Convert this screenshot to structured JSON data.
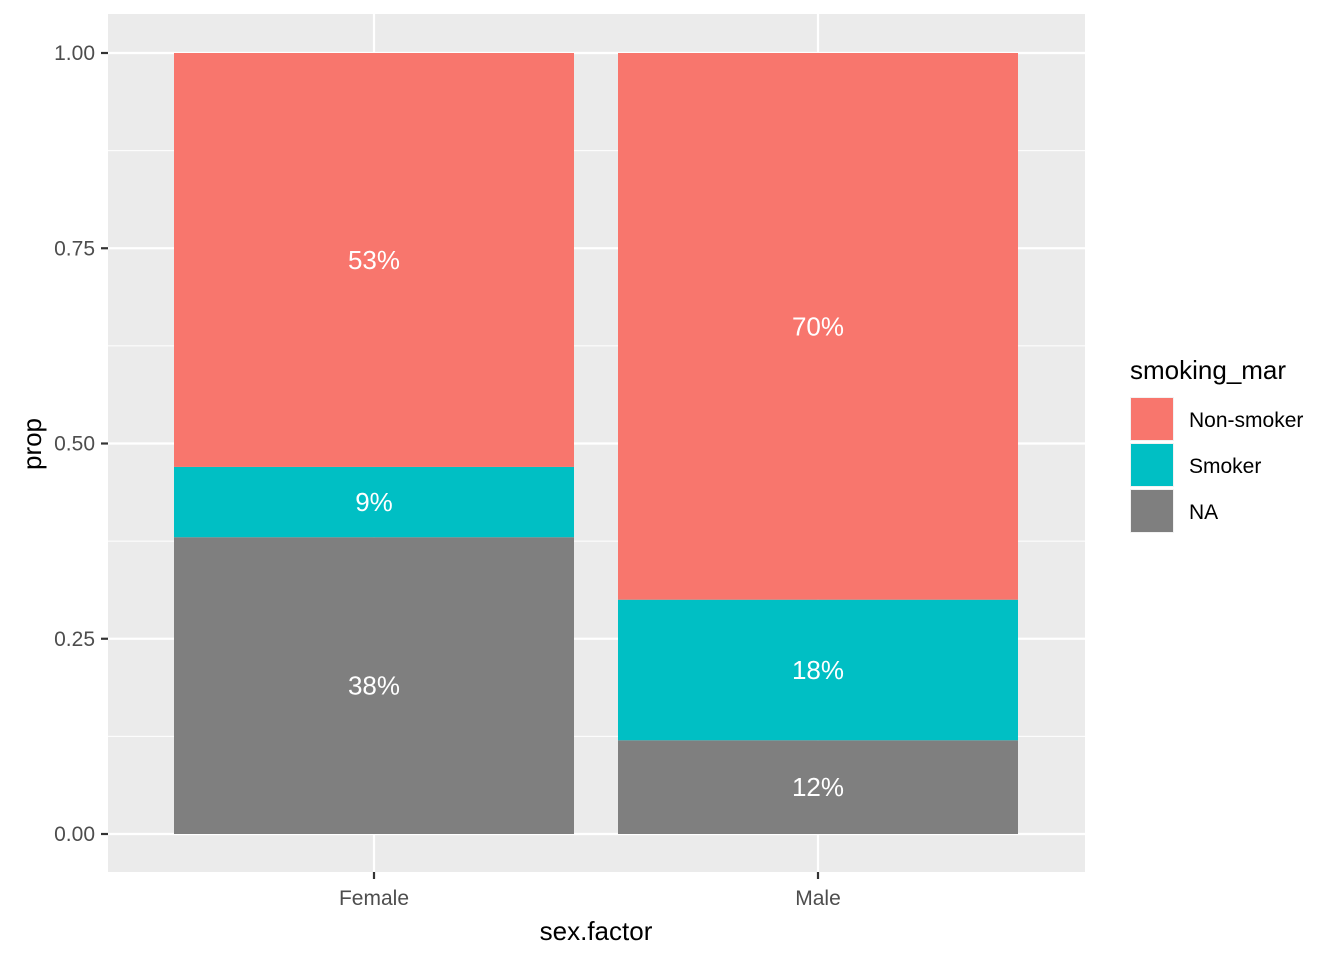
{
  "chart_data": {
    "type": "bar",
    "stacked": true,
    "categories": [
      "Female",
      "Male"
    ],
    "series": [
      {
        "name": "NA",
        "values": [
          0.38,
          0.12
        ],
        "labels": [
          "38%",
          "12%"
        ],
        "color": "#7f7f7f"
      },
      {
        "name": "Smoker",
        "values": [
          0.09,
          0.18
        ],
        "labels": [
          "9%",
          "18%"
        ],
        "color": "#00bfc4"
      },
      {
        "name": "Non-smoker",
        "values": [
          0.53,
          0.7
        ],
        "labels": [
          "53%",
          "70%"
        ],
        "color": "#f8766d"
      }
    ],
    "title": "",
    "xlabel": "sex.factor",
    "ylabel": "prop",
    "ylim": [
      0,
      1
    ],
    "yticks": [
      0,
      0.25,
      0.5,
      0.75,
      1
    ],
    "ytick_labels": [
      "0.00",
      "0.25",
      "0.50",
      "0.75",
      "1.00"
    ],
    "grid": true,
    "panel_color": "#ebebeb",
    "legend": {
      "title": "smoking_mar",
      "position": "right",
      "entries": [
        {
          "label": "Non-smoker",
          "color": "#f8766d"
        },
        {
          "label": "Smoker",
          "color": "#00bfc4"
        },
        {
          "label": "NA",
          "color": "#7f7f7f"
        }
      ]
    }
  }
}
